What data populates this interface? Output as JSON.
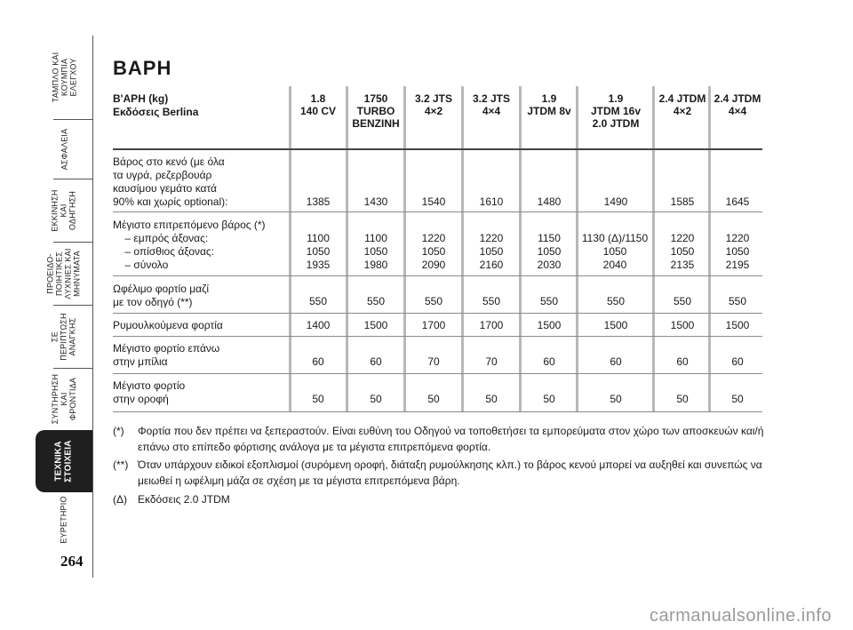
{
  "sidebar": {
    "tabs": [
      {
        "label": "ΤΑΜΠΛΟ ΚΑΙ\nΚΟΥΜΠΙΑ\nΕΛΕΓΧΟΥ"
      },
      {
        "label": "ΑΣΦΑΛΕΙΑ"
      },
      {
        "label": "ΕΚΚΙΝΗΣΗ\nΚΑΙ\nΟΔΗΓΗΣΗ"
      },
      {
        "label": "ΠΡΟΕΙΔΟ-\nΠΟΙΗΤΙΚΕΣ\nΛΥΧΝΙΕΣ ΚΑΙ\nΜΗΝΥΜΑΤΑ"
      },
      {
        "label": "ΣΕ\nΠΕΡΙΠΤΩΣΗ\nΑΝΑΓΚΗΣ"
      },
      {
        "label": "ΣΥΝΤΗΡΗΣΗ\nΚΑΙ\nΦΡΟΝΤΙΔΑ"
      },
      {
        "label": "ΤΕΧΝΙΚΑ\nΣΤΟΙΧΕΙΑ"
      },
      {
        "label": "ΕΥΡΕΤΗΡΙΟ"
      }
    ],
    "page_number": "264"
  },
  "page": {
    "title": "ΒΑΡΗ",
    "row_header_line1": "Β'ΑΡΗ (kg)",
    "row_header_line2": "Εκδόσεις Berlina"
  },
  "columns": [
    {
      "l1": "1.8",
      "l2": "140 CV",
      "l3": ""
    },
    {
      "l1": "1750",
      "l2": "TURBO",
      "l3": "BENZINH"
    },
    {
      "l1": "3.2 JTS",
      "l2": "4×2",
      "l3": ""
    },
    {
      "l1": "3.2 JTS",
      "l2": "4×4",
      "l3": ""
    },
    {
      "l1": "1.9",
      "l2": "JTDM 8v",
      "l3": ""
    },
    {
      "l1": "1.9",
      "l2": "JTDM 16v",
      "l3": "2.0 JTDM"
    },
    {
      "l1": "2.4 JTDM",
      "l2": "4×2",
      "l3": ""
    },
    {
      "l1": "2.4 JTDM",
      "l2": "4×4",
      "l3": ""
    }
  ],
  "rows": [
    {
      "label": "Βάρος στο κενό (με όλα\nτα υγρά, ρεζερβουάρ\nκαυσίμου γεμάτο κατά\n90% και χωρίς optional):",
      "values": [
        "1385",
        "1430",
        "1540",
        "1610",
        "1480",
        "1490",
        "1585",
        "1645"
      ]
    },
    {
      "label": "Μέγιστο επιτρεπόμενο βάρος (*)\n    – εμπρός άξονας:\n    – οπίσθιος άξονας:\n    – σύνολο",
      "values": [
        "1100\n1050\n1935",
        "1100\n1050\n1980",
        "1220\n1050\n2090",
        "1220\n1050\n2160",
        "1150\n1050\n2030",
        "1130 (Δ)/1150\n1050\n2040",
        "1220\n1050\n2135",
        "1220\n1050\n2195"
      ]
    },
    {
      "label": "Ωφέλιμο φορτίο μαζί\nμε τον οδηγό (**)",
      "values": [
        "550",
        "550",
        "550",
        "550",
        "550",
        "550",
        "550",
        "550"
      ]
    },
    {
      "label": "Ρυμουλκούμενα φορτία",
      "values": [
        "1400",
        "1500",
        "1700",
        "1700",
        "1500",
        "1500",
        "1500",
        "1500"
      ]
    },
    {
      "label": "Μέγιστο φορτίο επάνω\nστην μπίλια",
      "values": [
        "60",
        "60",
        "70",
        "70",
        "60",
        "60",
        "60",
        "60"
      ]
    },
    {
      "label": "Μέγιστο φορτίο\nστην οροφή",
      "values": [
        "50",
        "50",
        "50",
        "50",
        "50",
        "50",
        "50",
        "50"
      ]
    }
  ],
  "notes": [
    {
      "mark": "(*)",
      "text": "Φορτία που δεν πρέπει να ξεπεραστούν. Είναι ευθύνη του Οδηγού να τοποθετήσει τα εμπορεύματα στον χώρο των αποσκευών και/ή επάνω στο επίπεδο φόρτισης ανάλογα με τα μέγιστα επιτρεπόμενα φορτία."
    },
    {
      "mark": "(**)",
      "text": "Όταν υπάρχουν ειδικοί εξοπλισμοί (συρόμενη οροφή, διάταξη ρυμούλκησης κλπ.) το βάρος κενού μπορεί να αυξηθεί και συνεπώς να μειωθεί η ωφέλιμη μάζα σε σχέση με τα μέγιστα επιτρεπόμενα βάρη."
    },
    {
      "mark": "(Δ)",
      "text": "Εκδόσεις 2.0 JTDM"
    }
  ],
  "watermark": "carmanualsonline.info"
}
